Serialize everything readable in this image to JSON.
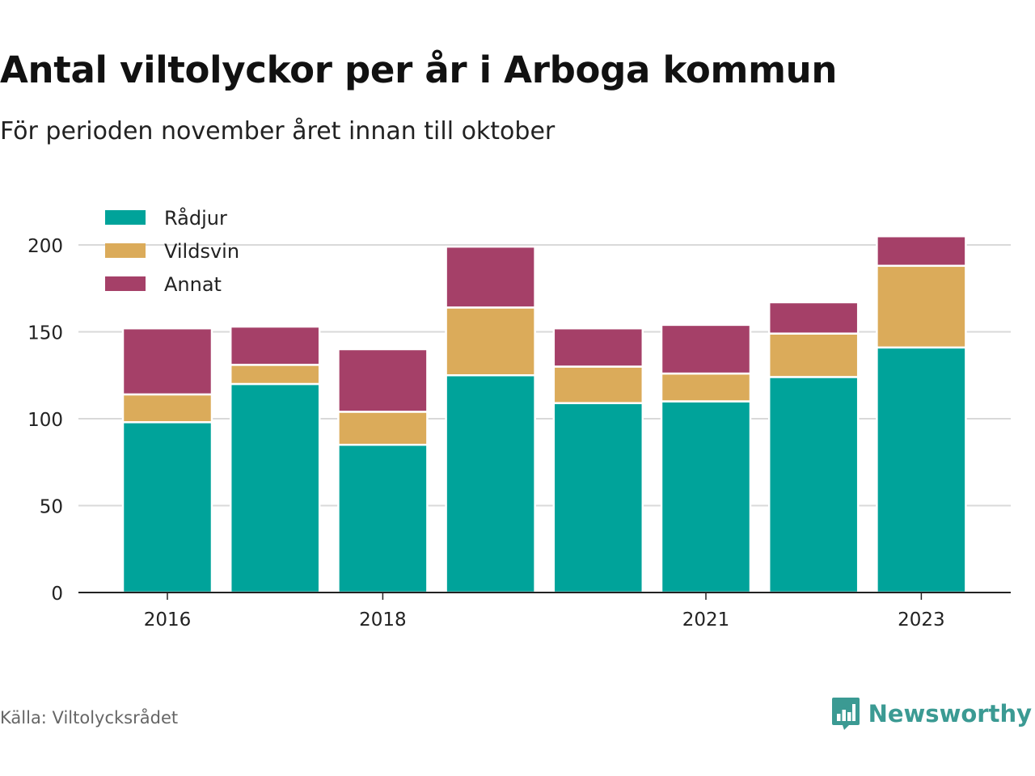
{
  "header": {
    "title": "Antal viltolyckor per år i Arboga kommun",
    "subtitle": "För perioden november året innan till oktober"
  },
  "footer": {
    "source": "Källa: Viltolycksrådet",
    "brand": "Newsworthy",
    "brand_icon": "bar-chart-speech-bubble-icon"
  },
  "chart_data": {
    "type": "bar",
    "stacked": true,
    "categories": [
      "2016",
      "2017",
      "2018",
      "2019",
      "2020",
      "2021",
      "2022",
      "2023"
    ],
    "x_tick_labels": [
      "2016",
      "",
      "2018",
      "",
      "",
      "2021",
      "",
      "2023"
    ],
    "series": [
      {
        "name": "Rådjur",
        "color": "#00a39a",
        "values": [
          98,
          120,
          85,
          125,
          109,
          110,
          124,
          141
        ]
      },
      {
        "name": "Vildsvin",
        "color": "#dbab5a",
        "values": [
          16,
          11,
          19,
          39,
          21,
          16,
          25,
          47
        ]
      },
      {
        "name": "Annat",
        "color": "#a54068",
        "values": [
          38,
          22,
          36,
          35,
          22,
          28,
          18,
          17
        ]
      }
    ],
    "ylim": [
      0,
      215
    ],
    "yticks": [
      0,
      50,
      100,
      150,
      200
    ],
    "xlabel": "",
    "ylabel": "",
    "grid": true,
    "legend_position": "top-left"
  }
}
